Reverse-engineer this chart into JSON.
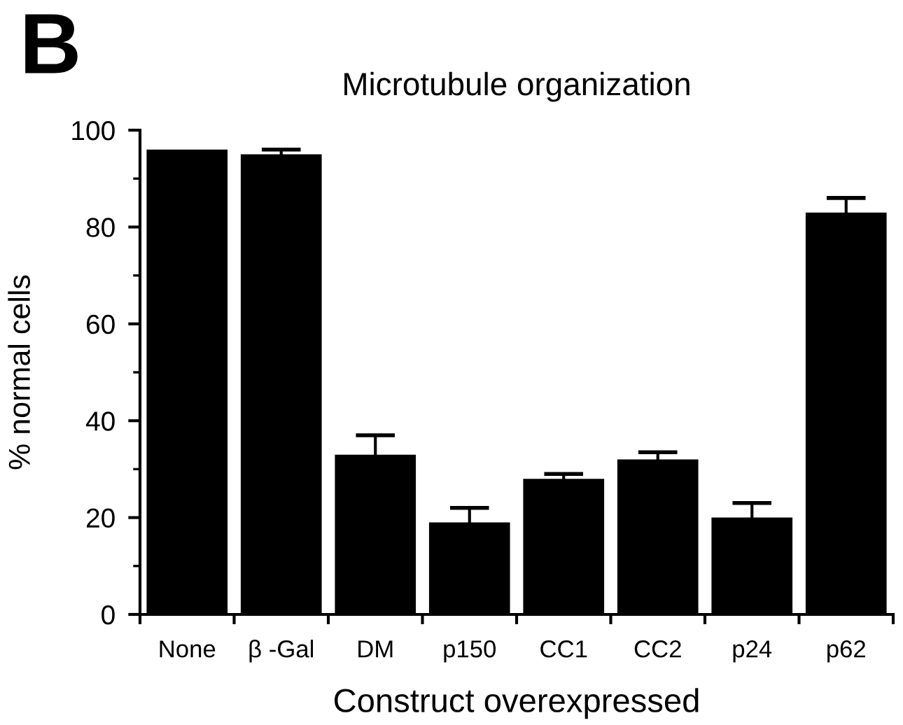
{
  "chart_data": {
    "type": "bar",
    "title": "Microtubule organization",
    "xlabel": "Construct overexpressed",
    "ylabel": "% normal cells",
    "annotations": [
      "B"
    ],
    "categories": [
      "None",
      "β -Gal",
      "DM",
      "p150",
      "CC1",
      "CC2",
      "p24",
      "p62"
    ],
    "values": [
      96,
      95,
      33,
      19,
      28,
      32,
      20,
      83
    ],
    "errors": [
      null,
      1,
      4,
      3,
      1,
      1.5,
      3,
      3
    ],
    "color": "#000000",
    "ylim": [
      0,
      100
    ],
    "yticks": [
      0,
      20,
      40,
      60,
      80,
      100
    ],
    "grid": false,
    "legend": false
  }
}
